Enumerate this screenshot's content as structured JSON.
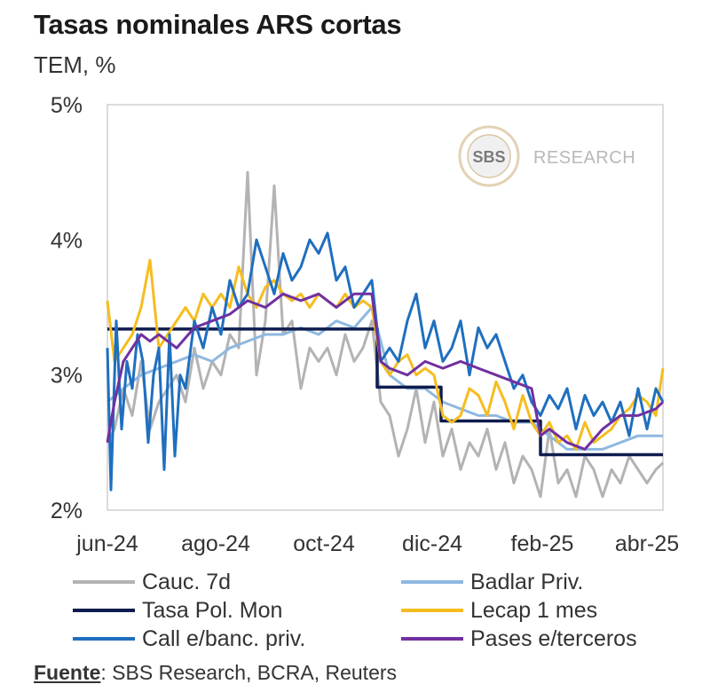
{
  "header": {
    "title": "Tasas nominales ARS cortas",
    "subtitle": "TEM, %"
  },
  "watermark": {
    "logo_text": "SBS",
    "text": "RESEARCH"
  },
  "source": {
    "label": "Fuente",
    "text": ": SBS Research, BCRA, Reuters"
  },
  "chart_data": {
    "type": "line",
    "title": "Tasas nominales ARS cortas",
    "ylabel": "TEM, %",
    "xlabel": "",
    "ylim": [
      2,
      5
    ],
    "xlim": [
      "2024-06-01",
      "2025-04-10"
    ],
    "y_ticks": [
      {
        "value": 2,
        "label": "2%"
      },
      {
        "value": 3,
        "label": "3%"
      },
      {
        "value": 4,
        "label": "4%"
      },
      {
        "value": 5,
        "label": "5%"
      }
    ],
    "x_ticks": [
      {
        "value": "2024-06-01",
        "label": "jun-24"
      },
      {
        "value": "2024-08-01",
        "label": "ago-24"
      },
      {
        "value": "2024-10-01",
        "label": "oct-24"
      },
      {
        "value": "2024-12-01",
        "label": "dic-24"
      },
      {
        "value": "2025-02-01",
        "label": "feb-25"
      },
      {
        "value": "2025-04-01",
        "label": "abr-25"
      }
    ],
    "grid": false,
    "legend_position": "bottom",
    "series": [
      {
        "name": "Cauc. 7d",
        "color": "#b3b3b3",
        "width": 3,
        "x": [
          "2024-06-01",
          "2024-06-05",
          "2024-06-10",
          "2024-06-15",
          "2024-06-20",
          "2024-06-25",
          "2024-06-30",
          "2024-07-05",
          "2024-07-10",
          "2024-07-15",
          "2024-07-20",
          "2024-07-25",
          "2024-07-30",
          "2024-08-04",
          "2024-08-09",
          "2024-08-14",
          "2024-08-19",
          "2024-08-24",
          "2024-08-29",
          "2024-09-03",
          "2024-09-08",
          "2024-09-13",
          "2024-09-18",
          "2024-09-23",
          "2024-09-28",
          "2024-10-03",
          "2024-10-08",
          "2024-10-13",
          "2024-10-18",
          "2024-10-23",
          "2024-10-28",
          "2024-11-02",
          "2024-11-07",
          "2024-11-12",
          "2024-11-17",
          "2024-11-22",
          "2024-11-27",
          "2024-12-02",
          "2024-12-07",
          "2024-12-12",
          "2024-12-17",
          "2024-12-22",
          "2024-12-27",
          "2025-01-01",
          "2025-01-06",
          "2025-01-11",
          "2025-01-16",
          "2025-01-21",
          "2025-01-26",
          "2025-01-31",
          "2025-02-05",
          "2025-02-10",
          "2025-02-15",
          "2025-02-20",
          "2025-02-25",
          "2025-03-02",
          "2025-03-07",
          "2025-03-12",
          "2025-03-17",
          "2025-03-22",
          "2025-03-27",
          "2025-04-01",
          "2025-04-06",
          "2025-04-10"
        ],
        "values": [
          2.5,
          2.6,
          2.9,
          2.7,
          3.1,
          2.6,
          2.8,
          2.9,
          3.0,
          2.8,
          3.2,
          2.9,
          3.1,
          3.0,
          3.3,
          3.2,
          4.5,
          3.0,
          3.4,
          4.4,
          3.3,
          3.4,
          2.9,
          3.2,
          3.1,
          3.2,
          3.0,
          3.3,
          3.1,
          3.2,
          3.4,
          2.8,
          2.7,
          2.4,
          2.6,
          2.9,
          2.5,
          2.8,
          2.4,
          2.6,
          2.3,
          2.5,
          2.4,
          2.6,
          2.3,
          2.5,
          2.2,
          2.4,
          2.3,
          2.1,
          2.6,
          2.2,
          2.3,
          2.1,
          2.4,
          2.3,
          2.1,
          2.3,
          2.2,
          2.4,
          2.3,
          2.2,
          2.3,
          2.35
        ]
      },
      {
        "name": "Badlar Priv.",
        "color": "#8fb8e0",
        "width": 3,
        "x": [
          "2024-06-01",
          "2024-06-10",
          "2024-06-20",
          "2024-06-30",
          "2024-07-10",
          "2024-07-20",
          "2024-07-30",
          "2024-08-09",
          "2024-08-19",
          "2024-08-29",
          "2024-09-08",
          "2024-09-18",
          "2024-09-28",
          "2024-10-08",
          "2024-10-18",
          "2024-10-28",
          "2024-11-07",
          "2024-11-17",
          "2024-11-27",
          "2024-12-07",
          "2024-12-17",
          "2024-12-27",
          "2025-01-06",
          "2025-01-16",
          "2025-01-26",
          "2025-02-05",
          "2025-02-15",
          "2025-02-25",
          "2025-03-07",
          "2025-03-17",
          "2025-03-27",
          "2025-04-06",
          "2025-04-10"
        ],
        "values": [
          2.8,
          2.9,
          3.0,
          3.05,
          3.1,
          3.15,
          3.1,
          3.2,
          3.25,
          3.3,
          3.3,
          3.35,
          3.3,
          3.4,
          3.35,
          3.5,
          3.0,
          2.9,
          2.9,
          2.8,
          2.75,
          2.7,
          2.7,
          2.65,
          2.65,
          2.55,
          2.45,
          2.45,
          2.45,
          2.5,
          2.55,
          2.55,
          2.55
        ]
      },
      {
        "name": "Tasa Pol. Mon",
        "color": "#0e1c4e",
        "width": 3.5,
        "step": true,
        "x": [
          "2024-06-01",
          "2024-10-31",
          "2024-10-31",
          "2024-12-06",
          "2024-12-06",
          "2025-01-31",
          "2025-01-31",
          "2025-04-10"
        ],
        "values": [
          3.34,
          3.34,
          2.91,
          2.91,
          2.66,
          2.66,
          2.41,
          2.41
        ]
      },
      {
        "name": "Lecap 1 mes",
        "color": "#f5bd1f",
        "width": 3,
        "x": [
          "2024-06-01",
          "2024-06-05",
          "2024-06-10",
          "2024-06-15",
          "2024-06-20",
          "2024-06-25",
          "2024-06-30",
          "2024-07-05",
          "2024-07-10",
          "2024-07-15",
          "2024-07-20",
          "2024-07-25",
          "2024-07-30",
          "2024-08-04",
          "2024-08-09",
          "2024-08-14",
          "2024-08-19",
          "2024-08-24",
          "2024-08-29",
          "2024-09-03",
          "2024-09-08",
          "2024-09-13",
          "2024-09-18",
          "2024-09-23",
          "2024-09-28",
          "2024-10-03",
          "2024-10-08",
          "2024-10-13",
          "2024-10-18",
          "2024-10-23",
          "2024-10-28",
          "2024-11-02",
          "2024-11-07",
          "2024-11-12",
          "2024-11-17",
          "2024-11-22",
          "2024-11-27",
          "2024-12-02",
          "2024-12-07",
          "2024-12-12",
          "2024-12-17",
          "2024-12-22",
          "2024-12-27",
          "2025-01-01",
          "2025-01-06",
          "2025-01-11",
          "2025-01-16",
          "2025-01-21",
          "2025-01-26",
          "2025-01-31",
          "2025-02-05",
          "2025-02-10",
          "2025-02-15",
          "2025-02-20",
          "2025-02-25",
          "2025-03-02",
          "2025-03-07",
          "2025-03-12",
          "2025-03-17",
          "2025-03-22",
          "2025-03-27",
          "2025-04-01",
          "2025-04-06",
          "2025-04-10"
        ],
        "values": [
          3.55,
          3.1,
          3.2,
          3.3,
          3.5,
          3.85,
          3.2,
          3.3,
          3.4,
          3.5,
          3.4,
          3.6,
          3.5,
          3.6,
          3.5,
          3.8,
          3.6,
          3.5,
          3.65,
          3.7,
          3.6,
          3.55,
          3.6,
          3.5,
          3.6,
          3.55,
          3.5,
          3.6,
          3.5,
          3.55,
          3.5,
          3.1,
          3.0,
          3.1,
          3.15,
          3.0,
          3.05,
          3.0,
          2.7,
          2.65,
          2.7,
          2.9,
          2.85,
          2.7,
          2.95,
          2.8,
          2.6,
          2.85,
          2.65,
          2.55,
          2.65,
          2.5,
          2.55,
          2.45,
          2.65,
          2.5,
          2.55,
          2.6,
          2.7,
          2.75,
          2.85,
          2.8,
          2.7,
          3.05
        ]
      },
      {
        "name": "Call e/banc. priv.",
        "color": "#1f6fbf",
        "width": 3,
        "x": [
          "2024-06-01",
          "2024-06-03",
          "2024-06-06",
          "2024-06-09",
          "2024-06-12",
          "2024-06-15",
          "2024-06-18",
          "2024-06-21",
          "2024-06-24",
          "2024-06-27",
          "2024-06-30",
          "2024-07-03",
          "2024-07-06",
          "2024-07-09",
          "2024-07-12",
          "2024-07-15",
          "2024-07-20",
          "2024-07-25",
          "2024-07-30",
          "2024-08-04",
          "2024-08-09",
          "2024-08-14",
          "2024-08-19",
          "2024-08-24",
          "2024-08-29",
          "2024-09-03",
          "2024-09-08",
          "2024-09-13",
          "2024-09-18",
          "2024-09-23",
          "2024-09-28",
          "2024-10-03",
          "2024-10-08",
          "2024-10-13",
          "2024-10-18",
          "2024-10-23",
          "2024-10-28",
          "2024-11-02",
          "2024-11-07",
          "2024-11-12",
          "2024-11-17",
          "2024-11-22",
          "2024-11-27",
          "2024-12-02",
          "2024-12-07",
          "2024-12-12",
          "2024-12-17",
          "2024-12-22",
          "2024-12-27",
          "2025-01-01",
          "2025-01-06",
          "2025-01-11",
          "2025-01-16",
          "2025-01-21",
          "2025-01-26",
          "2025-01-31",
          "2025-02-05",
          "2025-02-10",
          "2025-02-15",
          "2025-02-20",
          "2025-02-25",
          "2025-03-02",
          "2025-03-07",
          "2025-03-12",
          "2025-03-17",
          "2025-03-22",
          "2025-03-27",
          "2025-04-01",
          "2025-04-06",
          "2025-04-10"
        ],
        "values": [
          3.2,
          2.15,
          3.4,
          2.6,
          3.1,
          2.9,
          3.3,
          3.1,
          2.5,
          3.0,
          3.2,
          2.3,
          3.3,
          2.4,
          3.0,
          2.9,
          3.4,
          3.2,
          3.5,
          3.3,
          3.7,
          3.5,
          3.6,
          4.0,
          3.8,
          3.6,
          3.9,
          3.7,
          3.8,
          4.0,
          3.9,
          4.05,
          3.7,
          3.8,
          3.5,
          3.6,
          3.7,
          3.1,
          3.2,
          3.1,
          3.4,
          3.6,
          3.2,
          3.4,
          3.1,
          3.2,
          3.4,
          3.0,
          3.35,
          3.2,
          3.3,
          3.1,
          2.9,
          3.0,
          2.8,
          2.7,
          2.85,
          2.75,
          2.9,
          2.6,
          2.85,
          2.7,
          2.8,
          2.65,
          2.8,
          2.55,
          2.9,
          2.6,
          2.9,
          2.8
        ]
      },
      {
        "name": "Pases e/terceros",
        "color": "#7030a0",
        "width": 3,
        "x": [
          "2024-06-01",
          "2024-06-05",
          "2024-06-10",
          "2024-06-15",
          "2024-06-20",
          "2024-06-25",
          "2024-06-30",
          "2024-07-10",
          "2024-07-20",
          "2024-07-30",
          "2024-08-09",
          "2024-08-19",
          "2024-08-29",
          "2024-09-08",
          "2024-09-18",
          "2024-09-28",
          "2024-10-08",
          "2024-10-18",
          "2024-10-28",
          "2024-11-02",
          "2024-11-07",
          "2024-11-17",
          "2024-11-27",
          "2024-12-07",
          "2024-12-17",
          "2024-12-27",
          "2025-01-06",
          "2025-01-16",
          "2025-01-26",
          "2025-01-31",
          "2025-02-05",
          "2025-02-15",
          "2025-02-25",
          "2025-03-07",
          "2025-03-17",
          "2025-03-27",
          "2025-04-06",
          "2025-04-10"
        ],
        "values": [
          2.5,
          2.8,
          3.1,
          3.2,
          3.3,
          3.25,
          3.3,
          3.2,
          3.35,
          3.4,
          3.45,
          3.55,
          3.5,
          3.6,
          3.55,
          3.6,
          3.5,
          3.6,
          3.6,
          3.1,
          3.05,
          3.0,
          3.1,
          3.05,
          3.1,
          3.05,
          3.0,
          2.95,
          2.9,
          2.55,
          2.6,
          2.5,
          2.45,
          2.6,
          2.7,
          2.7,
          2.75,
          2.8
        ]
      }
    ]
  }
}
